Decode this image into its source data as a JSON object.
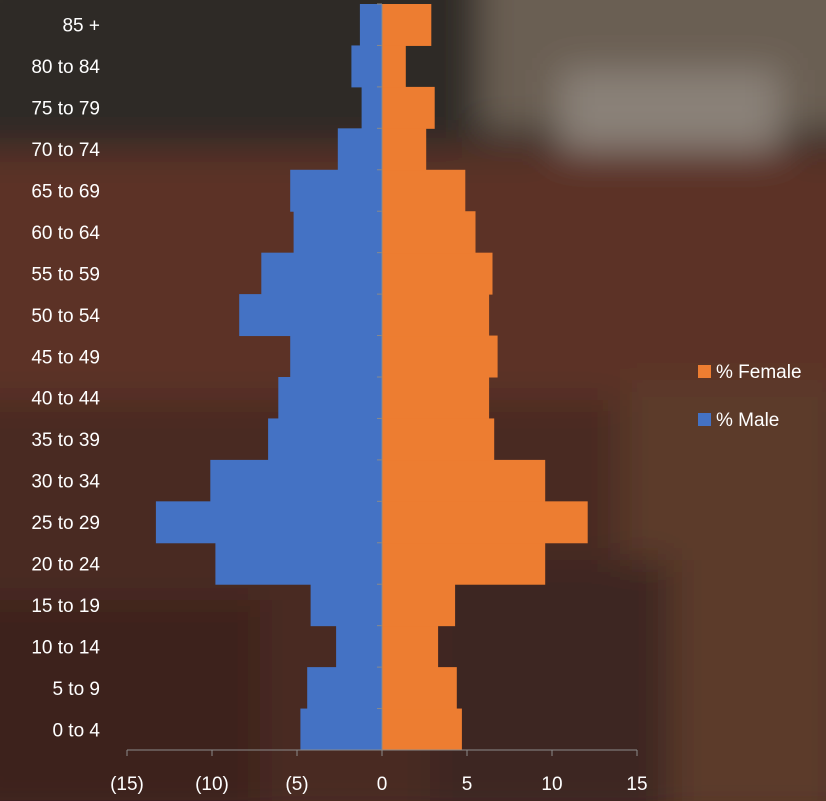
{
  "chart_data": {
    "type": "bar",
    "orientation": "horizontal",
    "categories": [
      "0 to 4",
      "5 to 9",
      "10 to 14",
      "15 to 19",
      "20 to 24",
      "25 to 29",
      "30 to 34",
      "35 to 39",
      "40 to 44",
      "45 to 49",
      "50 to 54",
      "55 to 59",
      "60 to 64",
      "65 to 69",
      "70 to 74",
      "75 to 79",
      "80 to 84",
      "85 +"
    ],
    "series": [
      {
        "name": "% Female",
        "color": "#ED7D31",
        "values": [
          4.7,
          4.4,
          3.3,
          4.3,
          9.6,
          12.1,
          9.6,
          6.6,
          6.3,
          6.8,
          6.3,
          6.5,
          5.5,
          4.9,
          2.6,
          3.1,
          1.4,
          2.9
        ]
      },
      {
        "name": "% Male",
        "color": "#4472C4",
        "values": [
          -4.8,
          -4.4,
          -2.7,
          -4.2,
          -9.8,
          -13.3,
          -10.1,
          -6.7,
          -6.1,
          -5.4,
          -8.4,
          -7.1,
          -5.2,
          -5.4,
          -2.6,
          -1.2,
          -1.8,
          -1.3
        ]
      }
    ],
    "xlim": [
      -15,
      15
    ],
    "xticks": [
      -15,
      -10,
      -5,
      0,
      5,
      10,
      15
    ],
    "xtick_labels": [
      "(15)",
      "(10)",
      "(5)",
      "0",
      "5",
      "10",
      "15"
    ],
    "xlabel": "",
    "ylabel": "",
    "title": "",
    "legend_position": "right",
    "grid": false
  },
  "colors": {
    "female": "#ED7D31",
    "male": "#4472C4",
    "text": "#FFFFFF",
    "axis": "#8a8a8a"
  }
}
